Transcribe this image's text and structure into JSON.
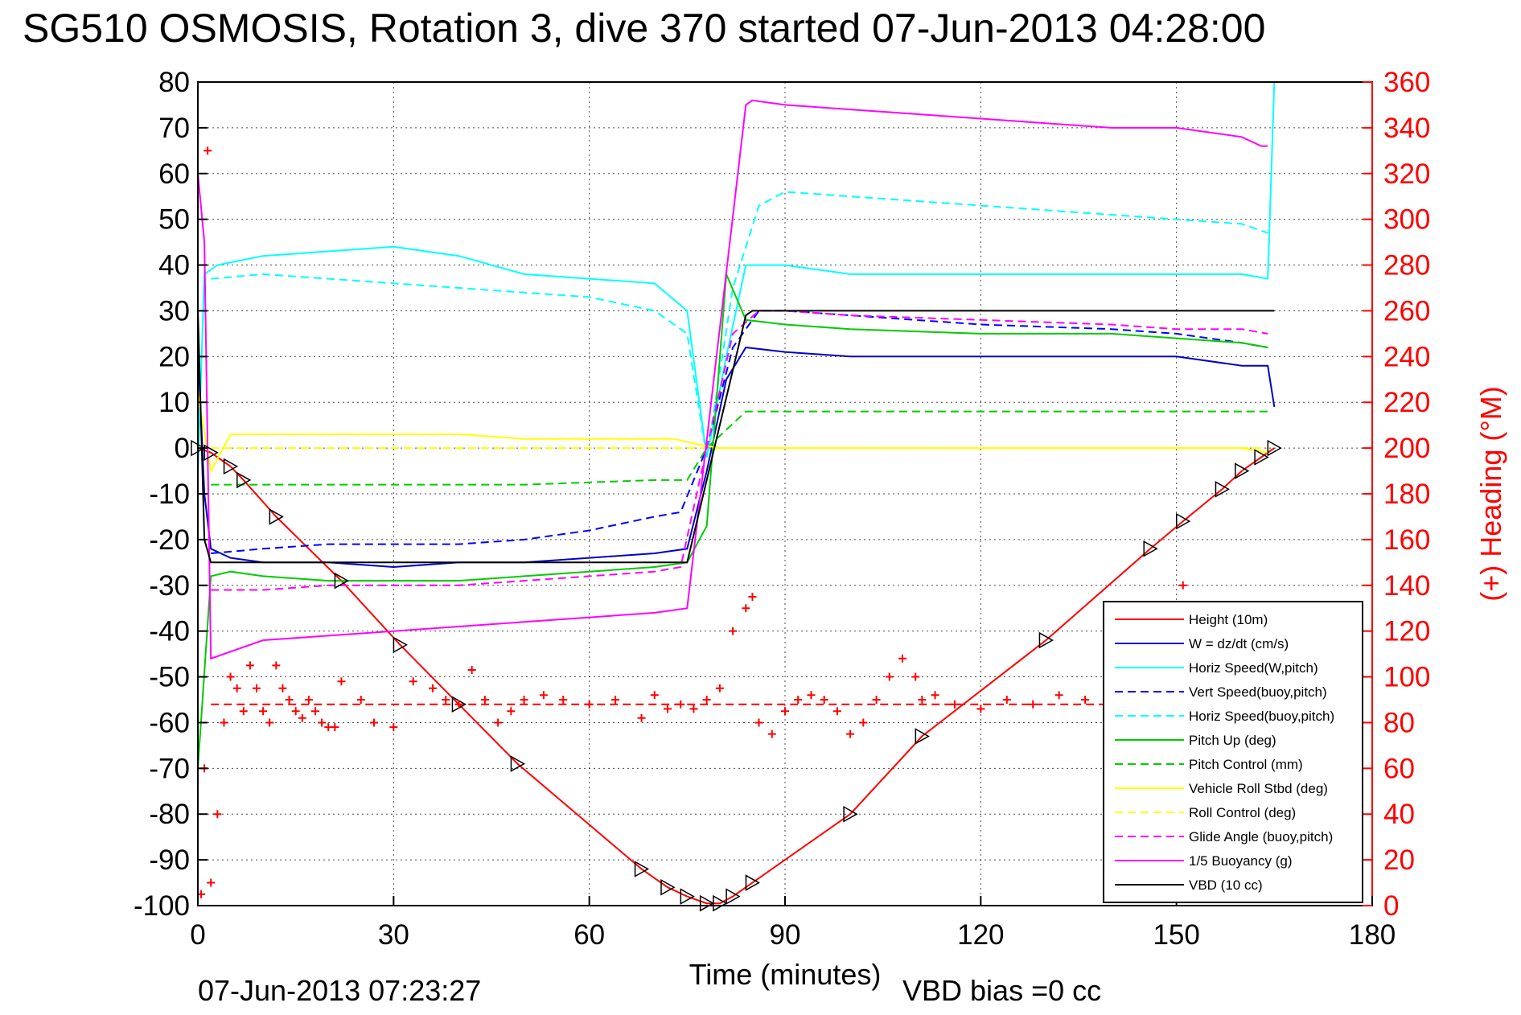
{
  "title": "SG510 OSMOSIS, Rotation 3, dive 370 started 07-Jun-2013 04:28:00",
  "footer_left": "07-Jun-2013 07:23:27",
  "footer_right": "VBD bias =0 cc",
  "colors": {
    "height": "#ff0000",
    "w": "#0000cc",
    "horiz": "#00ffff",
    "pitch": "#00cc00",
    "roll": "#ffff00",
    "glide": "#ff00ff",
    "buoyancy": "#ff00ff",
    "vbd": "#000000",
    "heading": "#ff0000"
  },
  "chart_data": {
    "type": "line",
    "title": "SG510 OSMOSIS, Rotation 3, dive 370 started 07-Jun-2013 04:28:00",
    "xlabel": "Time (minutes)",
    "ylabel_right": "(+) Heading (°M)",
    "xlim": [
      0,
      180
    ],
    "ylim": [
      -100,
      80
    ],
    "ylim_right": [
      0,
      360
    ],
    "x_ticks": [
      0,
      30,
      60,
      90,
      120,
      150,
      180
    ],
    "y_ticks": [
      -100,
      -90,
      -80,
      -70,
      -60,
      -50,
      -40,
      -30,
      -20,
      -10,
      0,
      10,
      20,
      30,
      40,
      50,
      60,
      70,
      80
    ],
    "y_ticks_right": [
      0,
      20,
      40,
      60,
      80,
      100,
      120,
      140,
      160,
      180,
      200,
      220,
      240,
      260,
      280,
      300,
      320,
      340,
      360
    ],
    "grid": true,
    "legend_position": "bottom-right",
    "series": [
      {
        "name": "Height (10m)",
        "style": "solid",
        "color": "#ff0000",
        "x": [
          0,
          2,
          5,
          7,
          12,
          22,
          31,
          40,
          49,
          68,
          72,
          75,
          78,
          80,
          82,
          85,
          100,
          111,
          130,
          146,
          151,
          157,
          160,
          163,
          165
        ],
        "y": [
          0,
          -1,
          -4,
          -7,
          -15,
          -29,
          -43,
          -56,
          -69,
          -92,
          -96,
          -98,
          -99.5,
          -99.5,
          -98,
          -95,
          -80,
          -63,
          -42,
          -22,
          -16,
          -9,
          -5,
          -2,
          0
        ]
      },
      {
        "name": "W = dz/dt (cm/s)",
        "style": "solid",
        "color": "#0000cc",
        "x": [
          0,
          1,
          2,
          5,
          10,
          20,
          30,
          40,
          50,
          60,
          70,
          75,
          78,
          81,
          84,
          90,
          100,
          120,
          140,
          150,
          160,
          164,
          165
        ],
        "y": [
          22,
          -10,
          -22,
          -24,
          -25,
          -25,
          -26,
          -25,
          -25,
          -24,
          -23,
          -22,
          -5,
          15,
          22,
          21,
          20,
          20,
          20,
          20,
          18,
          18,
          9
        ]
      },
      {
        "name": "Horiz Speed(W,pitch)",
        "style": "solid",
        "color": "#00ffff",
        "x": [
          0,
          1,
          3,
          10,
          20,
          30,
          40,
          50,
          60,
          70,
          75,
          78,
          81,
          84,
          90,
          100,
          120,
          140,
          150,
          160,
          164,
          165
        ],
        "y": [
          -5,
          38,
          40,
          42,
          43,
          44,
          42,
          38,
          37,
          36,
          30,
          -2,
          20,
          40,
          40,
          38,
          38,
          38,
          38,
          38,
          37,
          80
        ]
      },
      {
        "name": "Vert Speed(buoy,pitch)",
        "style": "dashed",
        "color": "#0000ff",
        "x": [
          2,
          10,
          20,
          30,
          40,
          50,
          60,
          70,
          74,
          78,
          82,
          86,
          90,
          100,
          120,
          140,
          150,
          160,
          164
        ],
        "y": [
          -23,
          -22,
          -21,
          -21,
          -21,
          -20,
          -18,
          -15,
          -14,
          0,
          22,
          30,
          30,
          29,
          27,
          26,
          25,
          23,
          22
        ]
      },
      {
        "name": "Horiz Speed(buoy,pitch)",
        "style": "dashed",
        "color": "#00ffff",
        "x": [
          2,
          10,
          20,
          30,
          40,
          50,
          60,
          70,
          75,
          78,
          82,
          86,
          90,
          100,
          120,
          140,
          150,
          160,
          164
        ],
        "y": [
          37,
          38,
          37,
          36,
          35,
          34,
          33,
          30,
          25,
          -2,
          35,
          53,
          56,
          55,
          53,
          51,
          50,
          49,
          47
        ]
      },
      {
        "name": "Pitch Up (deg)",
        "style": "solid",
        "color": "#00cc00",
        "x": [
          0,
          2,
          5,
          10,
          20,
          30,
          40,
          50,
          60,
          70,
          75,
          78,
          81,
          84,
          90,
          100,
          120,
          140,
          150,
          160,
          164
        ],
        "y": [
          -70,
          -28,
          -27,
          -28,
          -29,
          -29,
          -29,
          -28,
          -27,
          -26,
          -25,
          -17,
          38,
          28,
          27,
          26,
          25,
          25,
          24,
          23,
          22
        ]
      },
      {
        "name": "Pitch Control (mm)",
        "style": "dashed",
        "color": "#00cc00",
        "x": [
          2,
          10,
          30,
          50,
          70,
          75,
          78,
          84,
          100,
          130,
          160,
          164
        ],
        "y": [
          -8,
          -8,
          -8,
          -8,
          -7,
          -7,
          0,
          8,
          8,
          8,
          8,
          8
        ]
      },
      {
        "name": "Vehicle Roll Stbd (deg)",
        "style": "solid",
        "color": "#ffff00",
        "x": [
          0,
          2,
          5,
          10,
          20,
          30,
          40,
          50,
          60,
          70,
          73,
          76,
          80,
          85,
          90,
          100,
          110,
          120,
          140,
          150,
          160,
          164
        ],
        "y": [
          12,
          -5,
          3,
          3,
          3,
          3,
          3,
          2,
          2,
          2,
          2,
          1,
          0,
          0,
          0,
          0,
          0,
          0,
          0,
          0,
          0,
          -1
        ]
      },
      {
        "name": "Roll Control (deg)",
        "style": "dashed",
        "color": "#ffff00",
        "x": [
          2,
          30,
          60,
          75,
          90,
          120,
          150,
          164
        ],
        "y": [
          0,
          0,
          0,
          0,
          0,
          0,
          0,
          0
        ]
      },
      {
        "name": "Glide Angle (buoy,pitch)",
        "style": "dashed",
        "color": "#ff00ff",
        "x": [
          2,
          10,
          20,
          30,
          40,
          50,
          60,
          70,
          74,
          78,
          82,
          86,
          90,
          100,
          120,
          140,
          150,
          160,
          164
        ],
        "y": [
          -31,
          -31,
          -30,
          -30,
          -30,
          -29,
          -28,
          -27,
          -26,
          0,
          25,
          30,
          30,
          29,
          28,
          27,
          26,
          26,
          25
        ]
      },
      {
        "name": "1/5 Buoyancy (g)",
        "style": "solid",
        "color": "#ff00ff",
        "x": [
          0,
          1,
          2,
          10,
          20,
          30,
          40,
          50,
          60,
          70,
          75,
          84,
          85,
          90,
          100,
          110,
          120,
          130,
          140,
          150,
          160,
          163,
          164
        ],
        "y": [
          60,
          45,
          -46,
          -42,
          -41,
          -40,
          -39,
          -38,
          -37,
          -36,
          -35,
          75,
          76,
          75,
          74,
          73,
          72,
          71,
          70,
          70,
          68,
          66,
          66
        ]
      },
      {
        "name": "VBD (10 cc)",
        "style": "solid",
        "color": "#000000",
        "x": [
          0,
          1,
          2,
          75,
          84,
          85,
          165
        ],
        "y": [
          30,
          -20,
          -25,
          -25,
          29,
          30,
          30
        ]
      }
    ],
    "heading_series": {
      "name": "(+) Heading (°M)",
      "color": "#ff0000",
      "marker": "+",
      "mean_line": 88,
      "x": [
        0.5,
        1,
        1.5,
        2,
        3,
        4,
        5,
        6,
        7,
        8,
        9,
        10,
        11,
        12,
        13,
        14,
        15,
        16,
        17,
        18,
        19,
        20,
        21,
        22,
        25,
        27,
        30,
        33,
        36,
        38,
        40,
        42,
        44,
        46,
        48,
        50,
        53,
        56,
        60,
        64,
        68,
        70,
        72,
        74,
        76,
        78,
        80,
        82,
        84,
        85,
        86,
        88,
        90,
        92,
        94,
        96,
        98,
        100,
        102,
        104,
        106,
        108,
        110,
        111,
        113,
        116,
        120,
        124,
        128,
        132,
        136,
        140,
        144,
        148,
        150,
        151
      ],
      "y": [
        5,
        60,
        330,
        10,
        40,
        80,
        100,
        95,
        85,
        105,
        95,
        85,
        80,
        105,
        95,
        90,
        85,
        82,
        90,
        85,
        80,
        78,
        78,
        98,
        90,
        80,
        78,
        98,
        95,
        90,
        88,
        103,
        90,
        80,
        85,
        90,
        92,
        90,
        88,
        90,
        82,
        92,
        86,
        88,
        86,
        90,
        95,
        120,
        130,
        135,
        80,
        75,
        85,
        90,
        92,
        90,
        85,
        75,
        80,
        90,
        100,
        108,
        100,
        90,
        92,
        88,
        86,
        90,
        88,
        92,
        90,
        88,
        86,
        90,
        92,
        140
      ]
    }
  }
}
